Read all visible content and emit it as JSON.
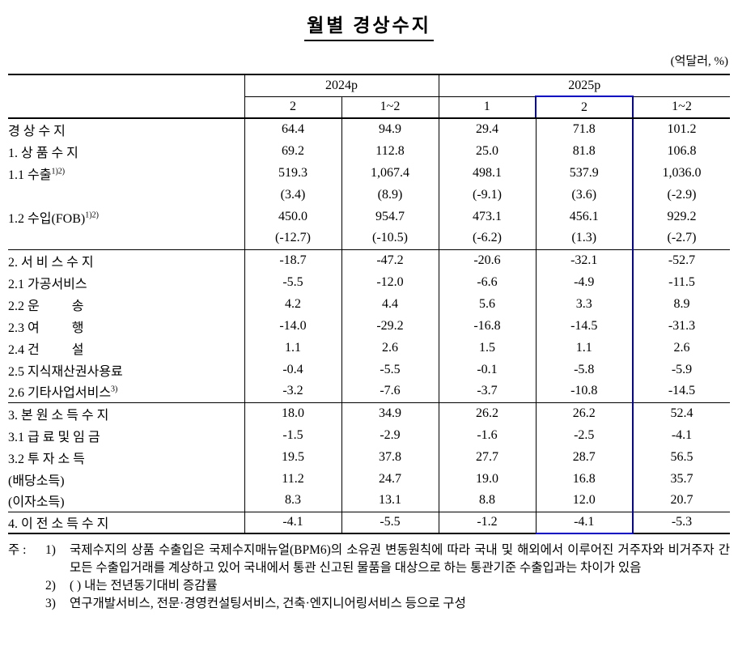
{
  "title": "월별 경상수지",
  "unit_note": "(억달러, %)",
  "colors": {
    "highlight_border": "#0000c0"
  },
  "table": {
    "col_groups": [
      {
        "label": "2024p",
        "span": 2
      },
      {
        "label": "2025p",
        "span": 3
      }
    ],
    "col_headers": [
      "2",
      "1~2",
      "1",
      "2",
      "1~2"
    ],
    "highlight_col": 3,
    "rows": [
      {
        "label": "경 상 수 지",
        "indent": 0,
        "bold": true,
        "values": [
          "64.4",
          "94.9",
          "29.4",
          "71.8",
          "101.2"
        ]
      },
      {
        "label": "1. 상 품 수 지",
        "indent": 1,
        "values": [
          "69.2",
          "112.8",
          "25.0",
          "81.8",
          "106.8"
        ]
      },
      {
        "label": "1.1 수출",
        "sup": "1)2)",
        "indent": 2,
        "values": [
          "519.3",
          "1,067.4",
          "498.1",
          "537.9",
          "1,036.0"
        ]
      },
      {
        "label": "",
        "indent": 2,
        "values": [
          "(3.4)",
          "(8.9)",
          "(-9.1)",
          "(3.6)",
          "(-2.9)"
        ]
      },
      {
        "label": "1.2 수입(FOB)",
        "sup": "1)2)",
        "indent": 2,
        "values": [
          "450.0",
          "954.7",
          "473.1",
          "456.1",
          "929.2"
        ]
      },
      {
        "label": "",
        "indent": 2,
        "values": [
          "(-12.7)",
          "(-10.5)",
          "(-6.2)",
          "(1.3)",
          "(-2.7)"
        ]
      },
      {
        "label": "2. 서 비 스 수 지",
        "indent": 1,
        "section": true,
        "values": [
          "-18.7",
          "-47.2",
          "-20.6",
          "-32.1",
          "-52.7"
        ]
      },
      {
        "label": "2.1 가공서비스",
        "indent": 2,
        "values": [
          "-5.5",
          "-12.0",
          "-6.6",
          "-4.9",
          "-11.5"
        ]
      },
      {
        "label": "2.2 운          송",
        "indent": 2,
        "values": [
          "4.2",
          "4.4",
          "5.6",
          "3.3",
          "8.9"
        ]
      },
      {
        "label": "2.3 여          행",
        "indent": 2,
        "values": [
          "-14.0",
          "-29.2",
          "-16.8",
          "-14.5",
          "-31.3"
        ]
      },
      {
        "label": "2.4 건          설",
        "indent": 2,
        "values": [
          "1.1",
          "2.6",
          "1.5",
          "1.1",
          "2.6"
        ]
      },
      {
        "label": "2.5 지식재산권사용료",
        "indent": 2,
        "values": [
          "-0.4",
          "-5.5",
          "-0.1",
          "-5.8",
          "-5.9"
        ]
      },
      {
        "label": "2.6 기타사업서비스",
        "sup": "3)",
        "indent": 2,
        "values": [
          "-3.2",
          "-7.6",
          "-3.7",
          "-10.8",
          "-14.5"
        ]
      },
      {
        "label": "3. 본 원 소 득 수 지",
        "indent": 1,
        "section": true,
        "values": [
          "18.0",
          "34.9",
          "26.2",
          "26.2",
          "52.4"
        ]
      },
      {
        "label": "3.1 급 료 및 임 금",
        "indent": 2,
        "values": [
          "-1.5",
          "-2.9",
          "-1.6",
          "-2.5",
          "-4.1"
        ]
      },
      {
        "label": "3.2 투 자 소 득",
        "indent": 2,
        "values": [
          "19.5",
          "37.8",
          "27.7",
          "28.7",
          "56.5"
        ]
      },
      {
        "label": "(배당소득)",
        "indent": 3,
        "values": [
          "11.2",
          "24.7",
          "19.0",
          "16.8",
          "35.7"
        ]
      },
      {
        "label": "(이자소득)",
        "indent": 3,
        "values": [
          "8.3",
          "13.1",
          "8.8",
          "12.0",
          "20.7"
        ]
      },
      {
        "label": "4. 이 전 소 득 수 지",
        "indent": 1,
        "section": true,
        "values": [
          "-4.1",
          "-5.5",
          "-1.2",
          "-4.1",
          "-5.3"
        ]
      }
    ]
  },
  "footnotes": {
    "prefix": "주 :",
    "items": [
      {
        "num": "1)",
        "text": "국제수지의 상품 수출입은 국제수지매뉴얼(BPM6)의 소유권 변동원칙에 따라 국내 및 해외에서 이루어진 거주자와 비거주자 간 모든 수출입거래를 계상하고 있어 국내에서 통관 신고된 물품을 대상으로 하는 통관기준 수출입과는 차이가 있음"
      },
      {
        "num": "2)",
        "text": "( ) 내는 전년동기대비 증감률"
      },
      {
        "num": "3)",
        "text": "연구개발서비스, 전문·경영컨설팅서비스, 건축·엔지니어링서비스 등으로 구성"
      }
    ]
  }
}
